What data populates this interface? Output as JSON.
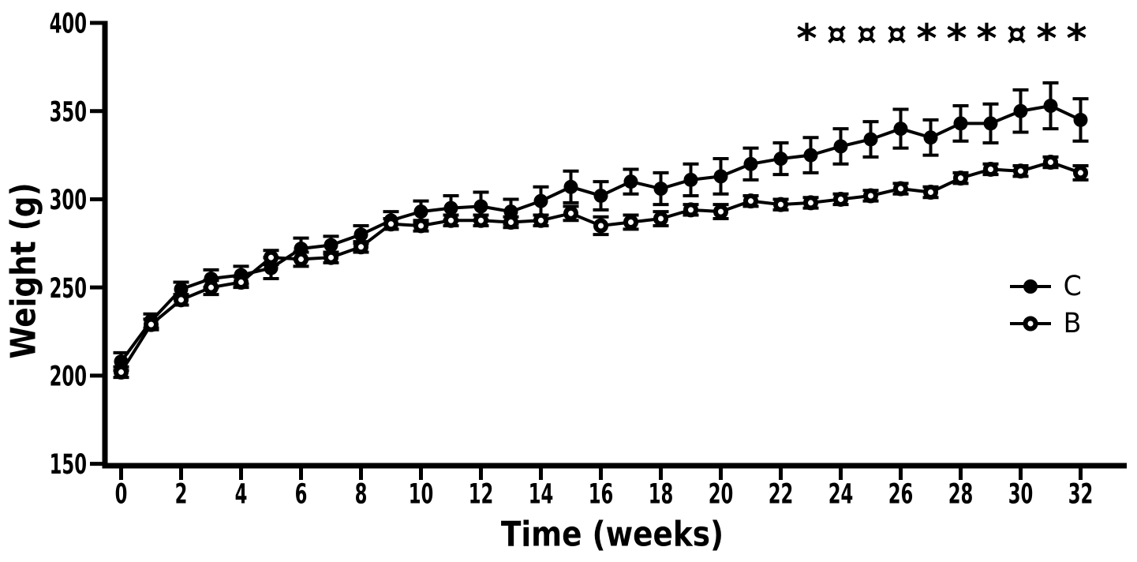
{
  "chart_data": {
    "type": "line",
    "title": "",
    "xlabel": "Time (weeks)",
    "ylabel": "Weight (g)",
    "xlim": [
      0,
      32
    ],
    "ylim": [
      150,
      400
    ],
    "xticks": [
      0,
      2,
      4,
      6,
      8,
      10,
      12,
      14,
      16,
      18,
      20,
      22,
      24,
      26,
      28,
      30,
      32
    ],
    "yticks": [
      150,
      200,
      250,
      300,
      350,
      400
    ],
    "grid": false,
    "legend_position": "right",
    "colors": {
      "foreground": "#000000",
      "background": "#ffffff"
    },
    "x": [
      0,
      1,
      2,
      3,
      4,
      5,
      6,
      7,
      8,
      9,
      10,
      11,
      12,
      13,
      14,
      15,
      16,
      17,
      18,
      19,
      20,
      21,
      22,
      23,
      24,
      25,
      26,
      27,
      28,
      29,
      30,
      31,
      32
    ],
    "series": [
      {
        "name": "C",
        "marker": "filled-circle",
        "values": [
          208,
          231,
          249,
          255,
          257,
          261,
          272,
          274,
          280,
          288,
          293,
          295,
          296,
          293,
          299,
          307,
          302,
          310,
          306,
          311,
          313,
          320,
          323,
          325,
          330,
          334,
          340,
          335,
          343,
          343,
          350,
          353,
          345
        ],
        "errors": [
          5,
          4,
          4,
          5,
          5,
          6,
          6,
          5,
          5,
          5,
          6,
          7,
          8,
          7,
          8,
          9,
          8,
          7,
          9,
          9,
          10,
          9,
          9,
          10,
          10,
          10,
          11,
          10,
          10,
          11,
          12,
          13,
          12
        ]
      },
      {
        "name": "B",
        "marker": "open-circle",
        "values": [
          202,
          229,
          243,
          250,
          253,
          267,
          266,
          267,
          273,
          286,
          285,
          288,
          288,
          287,
          288,
          292,
          285,
          287,
          289,
          294,
          293,
          299,
          297,
          298,
          300,
          302,
          306,
          304,
          312,
          317,
          316,
          321,
          315
        ],
        "errors": [
          3,
          3,
          3,
          4,
          3,
          4,
          4,
          3,
          3,
          3,
          3,
          3,
          3,
          3,
          3,
          4,
          5,
          4,
          4,
          3,
          4,
          3,
          3,
          3,
          3,
          3,
          3,
          3,
          3,
          3,
          3,
          3,
          4
        ]
      }
    ],
    "annotations": {
      "significance": [
        {
          "week": 23,
          "symbol": "*"
        },
        {
          "week": 24,
          "symbol": "¤"
        },
        {
          "week": 25,
          "symbol": "¤"
        },
        {
          "week": 26,
          "symbol": "¤"
        },
        {
          "week": 27,
          "symbol": "*"
        },
        {
          "week": 28,
          "symbol": "*"
        },
        {
          "week": 29,
          "symbol": "*"
        },
        {
          "week": 30,
          "symbol": "¤"
        },
        {
          "week": 31,
          "symbol": "*"
        },
        {
          "week": 32,
          "symbol": "*"
        }
      ]
    }
  }
}
